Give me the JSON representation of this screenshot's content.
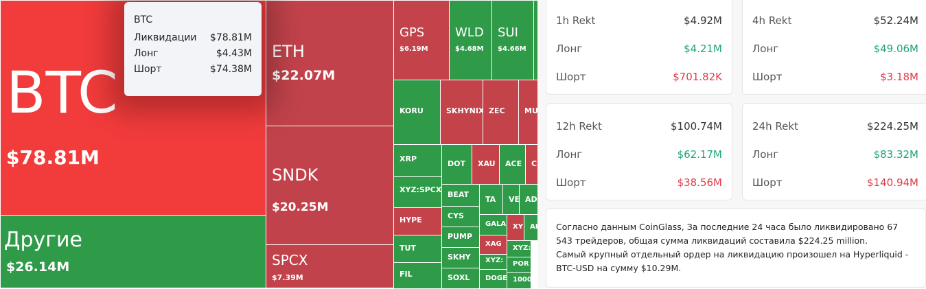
{
  "treemap": {
    "tiles": [
      {
        "label": "BTC",
        "value": "$78.81M",
        "color": "#f23b3b"
      },
      {
        "label": "Другие",
        "value": "$26.14M",
        "color": "#2f9a48"
      },
      {
        "label": "ETH",
        "value": "$22.07M",
        "color": "#c1424a"
      },
      {
        "label": "SNDK",
        "value": "$20.25M",
        "color": "#c1424a"
      },
      {
        "label": "SPCX",
        "value": "$7.39M",
        "color": "#c1424a"
      },
      {
        "label": "GPS",
        "value": "$6.19M",
        "color": "#c4434a"
      },
      {
        "label": "WLD",
        "value": "$4.68M",
        "color": "#2f9a48"
      },
      {
        "label": "SUI",
        "value": "$4.66M",
        "color": "#2f9a48"
      },
      {
        "color": "#2f9a48"
      },
      {
        "label": "KORU",
        "color": "#2f9a48"
      },
      {
        "label": "SKHYNIX",
        "color": "#c4434a"
      },
      {
        "label": "ZEC",
        "color": "#c4434a"
      },
      {
        "label": "MU",
        "color": "#c4434a"
      },
      {
        "label": "XRP",
        "color": "#2f9a48"
      },
      {
        "label": "XYZ:SPCX",
        "color": "#2f9a48"
      },
      {
        "label": "HYPE",
        "color": "#c4434a"
      },
      {
        "label": "TUT",
        "color": "#2f9a48"
      },
      {
        "label": "FIL",
        "color": "#2f9a48"
      },
      {
        "label": "DOT",
        "color": "#2f9a48"
      },
      {
        "label": "XAU",
        "color": "#c4434a"
      },
      {
        "label": "ACE",
        "color": "#2f9a48"
      },
      {
        "label": "C",
        "color": "#c4434a"
      },
      {
        "label": "BEAT",
        "color": "#2f9a48"
      },
      {
        "label": "CYS",
        "color": "#2f9a48"
      },
      {
        "label": "PUMP",
        "color": "#2f9a48"
      },
      {
        "label": "SKHY",
        "color": "#2f9a48"
      },
      {
        "label": "SOXL",
        "color": "#2f9a48"
      },
      {
        "label": "TA",
        "color": "#2f9a48"
      },
      {
        "label": "VE",
        "color": "#2f9a48"
      },
      {
        "label": "AD",
        "color": "#2f9a48"
      },
      {
        "label": "GALA",
        "color": "#2f9a48"
      },
      {
        "label": "XAG",
        "color": "#c4434a"
      },
      {
        "label": "XYZ:",
        "color": "#2f9a48"
      },
      {
        "label": "DOGE",
        "color": "#2f9a48"
      },
      {
        "label": "XY",
        "color": "#c4434a"
      },
      {
        "label": "AK",
        "color": "#2f9a48"
      },
      {
        "label": "XYZ:",
        "color": "#2f9a48"
      },
      {
        "label": "POR",
        "color": "#2f9a48"
      },
      {
        "label": "1000",
        "color": "#2f9a48"
      }
    ]
  },
  "tooltip": {
    "title": "BTC",
    "rows": [
      [
        "Ликвидации",
        "$78.81M"
      ],
      [
        "Лонг",
        "$4.43M"
      ],
      [
        "Шорт",
        "$74.38M"
      ]
    ]
  },
  "cards": [
    {
      "title": "1h Rekt",
      "total": "$4.92M",
      "long_label": "Лонг",
      "long": "$4.21M",
      "short_label": "Шорт",
      "short": "$701.82K"
    },
    {
      "title": "4h Rekt",
      "total": "$52.24M",
      "long_label": "Лонг",
      "long": "$49.06M",
      "short_label": "Шорт",
      "short": "$3.18M"
    },
    {
      "title": "12h Rekt",
      "total": "$100.74M",
      "long_label": "Лонг",
      "long": "$62.17M",
      "short_label": "Шорт",
      "short": "$38.56M"
    },
    {
      "title": "24h Rekt",
      "total": "$224.25M",
      "long_label": "Лонг",
      "long": "$83.32M",
      "short_label": "Шорт",
      "short": "$140.94M"
    }
  ],
  "note": [
    "Согласно данным CoinGlass, За последние 24 часа было ликвидировано 67 543 трейдеров, общая сумма ликвидаций составила $224.25 million.",
    "Самый крупный отдельный ордер на ликвидацию произошел на Hyperliquid - BTC-USD на сумму $10.29M."
  ]
}
